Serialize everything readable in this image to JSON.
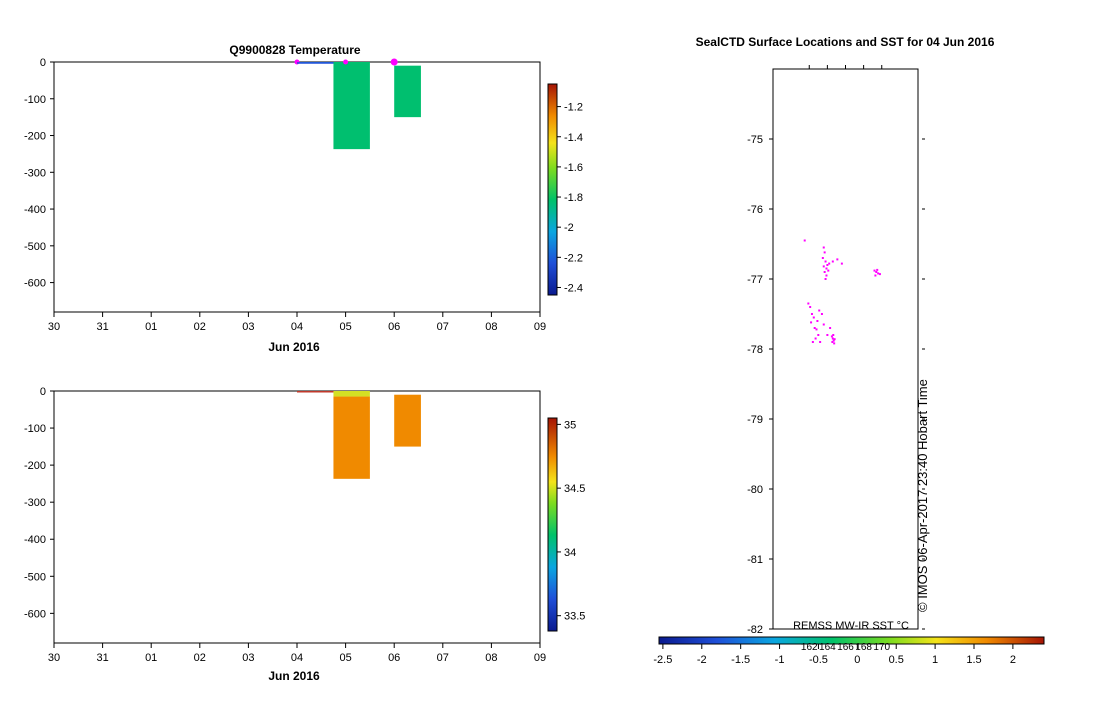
{
  "chart_data": [
    {
      "type": "bar",
      "title": "Q9900828  Temperature",
      "xlabel": "Jun 2016",
      "x_ticks": [
        "30",
        "31",
        "01",
        "02",
        "03",
        "04",
        "05",
        "06",
        "07",
        "08",
        "09"
      ],
      "y_ticks": [
        "0",
        "-100",
        "-200",
        "-300",
        "-400",
        "-500",
        "-600"
      ],
      "ylim": [
        -680,
        0
      ],
      "colorbar": {
        "ticks": [
          "-1.2",
          "-1.4",
          "-1.6",
          "-1.8",
          "-2",
          "-2.2",
          "-2.4"
        ],
        "tick_values": [
          -1.2,
          -1.4,
          -1.6,
          -1.8,
          -2,
          -2.2,
          -2.4
        ],
        "range": [
          -2.45,
          -1.05
        ]
      },
      "profiles": [
        {
          "x0": 4.0,
          "x1": 4.75,
          "top": 0,
          "bottom": -3,
          "value": -2.0,
          "color": "#1f77d8"
        },
        {
          "x0": 4.75,
          "x1": 5.5,
          "top": 0,
          "bottom": -237,
          "value": -1.95,
          "color": "#00bf6f"
        },
        {
          "x0": 6.0,
          "x1": 6.55,
          "top": -10,
          "bottom": -150,
          "value": -1.95,
          "color": "#00bf6f"
        }
      ],
      "markers": [
        4.0,
        5.0,
        6.0
      ]
    },
    {
      "type": "bar",
      "title": "",
      "xlabel": "Jun 2016",
      "x_ticks": [
        "30",
        "31",
        "01",
        "02",
        "03",
        "04",
        "05",
        "06",
        "07",
        "08",
        "09"
      ],
      "y_ticks": [
        "0",
        "-100",
        "-200",
        "-300",
        "-400",
        "-500",
        "-600"
      ],
      "ylim": [
        -680,
        0
      ],
      "colorbar": {
        "ticks": [
          "35",
          "34.5",
          "34",
          "33.5"
        ],
        "tick_values": [
          35,
          34.5,
          34,
          33.5
        ],
        "range": [
          33.38,
          35.05
        ]
      },
      "profiles": [
        {
          "x0": 4.0,
          "x1": 4.75,
          "top": 0,
          "bottom": -3,
          "value": 34.9,
          "color": "#c0392b"
        },
        {
          "x0": 4.75,
          "x1": 5.5,
          "top": 0,
          "bottom": -15,
          "value": 34.4,
          "color": "#d4e024"
        },
        {
          "x0": 4.75,
          "x1": 5.5,
          "top": -15,
          "bottom": -237,
          "value": 34.7,
          "color": "#f08a00"
        },
        {
          "x0": 6.0,
          "x1": 6.55,
          "top": -10,
          "bottom": -150,
          "value": 34.7,
          "color": "#f08a00"
        }
      ]
    },
    {
      "type": "scatter",
      "title": "SealCTD Surface Locations and SST for 04 Jun 2016",
      "y_ticks": [
        "-75",
        "-76",
        "-77",
        "-78",
        "-79",
        "-80",
        "-81",
        "-82"
      ],
      "ylim": [
        -82,
        -74
      ],
      "colorbar": {
        "ticks": [
          "-2.5",
          "-2",
          "-1.5",
          "-1",
          "-0.5",
          "0",
          "0.5",
          "1",
          "1.5",
          "2"
        ],
        "tick_values": [
          -2.5,
          -2,
          -1.5,
          -1,
          -0.5,
          0,
          0.5,
          1,
          1.5,
          2
        ],
        "range": [
          -2.55,
          2.4
        ]
      },
      "x_ticks": [
        "162",
        "164",
        "166",
        "168",
        "170"
      ],
      "x_tick_values": [
        162,
        164,
        166,
        168,
        170
      ],
      "xlim": [
        158,
        174
      ],
      "sst_label": "REMSS MW-IR SST °C",
      "credit": "© IMOS 06-Apr-2017 23:40 Hobart Time",
      "point_color": "#ff00ff",
      "points": [
        [
          163.6,
          -76.55
        ],
        [
          163.7,
          -76.62
        ],
        [
          163.5,
          -76.7
        ],
        [
          163.8,
          -76.75
        ],
        [
          163.6,
          -76.82
        ],
        [
          163.9,
          -76.85
        ],
        [
          164.0,
          -76.8
        ],
        [
          163.7,
          -76.9
        ],
        [
          163.9,
          -76.95
        ],
        [
          164.1,
          -76.88
        ],
        [
          163.8,
          -77.0
        ],
        [
          164.2,
          -76.78
        ],
        [
          164.6,
          -76.75
        ],
        [
          165.1,
          -76.72
        ],
        [
          165.6,
          -76.78
        ],
        [
          169.2,
          -76.88
        ],
        [
          169.4,
          -76.9
        ],
        [
          169.6,
          -76.92
        ],
        [
          169.3,
          -76.95
        ],
        [
          169.8,
          -76.93
        ],
        [
          169.5,
          -76.87
        ],
        [
          161.9,
          -77.35
        ],
        [
          162.1,
          -77.4
        ],
        [
          162.3,
          -77.5
        ],
        [
          162.5,
          -77.55
        ],
        [
          162.2,
          -77.62
        ],
        [
          162.6,
          -77.7
        ],
        [
          162.8,
          -77.72
        ],
        [
          163.0,
          -77.8
        ],
        [
          162.7,
          -77.85
        ],
        [
          163.1,
          -77.45
        ],
        [
          162.9,
          -77.6
        ],
        [
          163.4,
          -77.5
        ],
        [
          163.6,
          -77.65
        ],
        [
          164.3,
          -77.7
        ],
        [
          164.0,
          -77.8
        ],
        [
          164.5,
          -77.82
        ],
        [
          164.6,
          -77.85
        ],
        [
          164.7,
          -77.88
        ],
        [
          164.55,
          -77.9
        ],
        [
          164.8,
          -77.86
        ],
        [
          164.65,
          -77.8
        ],
        [
          164.75,
          -77.92
        ],
        [
          163.2,
          -77.9
        ],
        [
          162.4,
          -77.9
        ],
        [
          161.5,
          -76.45
        ]
      ]
    }
  ]
}
